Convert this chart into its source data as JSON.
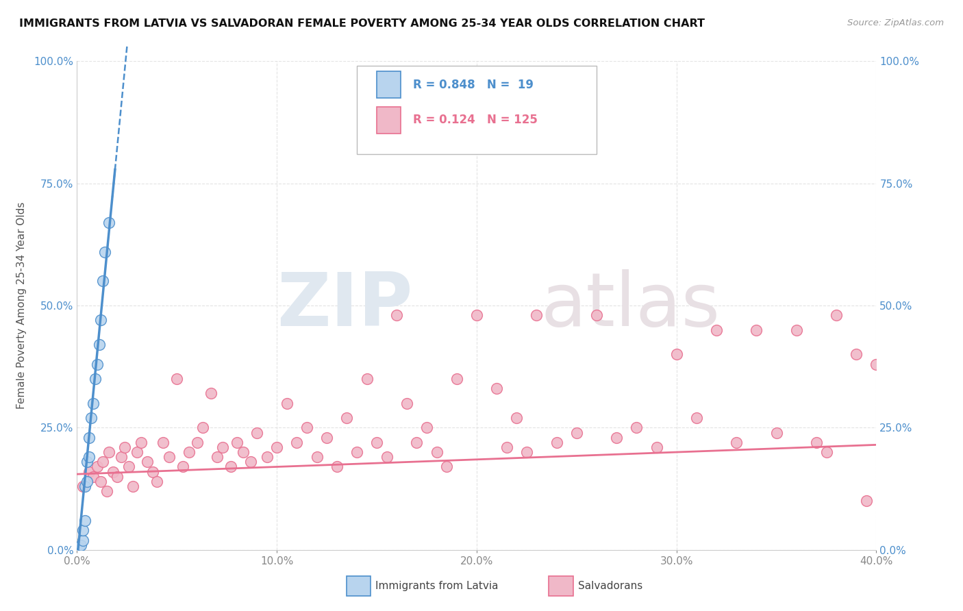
{
  "title": "IMMIGRANTS FROM LATVIA VS SALVADORAN FEMALE POVERTY AMONG 25-34 YEAR OLDS CORRELATION CHART",
  "source": "Source: ZipAtlas.com",
  "ylabel": "Female Poverty Among 25-34 Year Olds",
  "xlim": [
    0.0,
    0.4
  ],
  "ylim": [
    0.0,
    1.0
  ],
  "xticks": [
    0.0,
    0.1,
    0.2,
    0.3,
    0.4
  ],
  "xtick_labels": [
    "0.0%",
    "10.0%",
    "20.0%",
    "30.0%",
    "40.0%"
  ],
  "yticks": [
    0.0,
    0.25,
    0.5,
    0.75,
    1.0
  ],
  "ytick_labels": [
    "0.0%",
    "25.0%",
    "50.0%",
    "75.0%",
    "100.0%"
  ],
  "legend_R_blue": "0.848",
  "legend_N_blue": "19",
  "legend_R_pink": "0.124",
  "legend_N_pink": "125",
  "legend_label_blue": "Immigrants from Latvia",
  "legend_label_pink": "Salvadorans",
  "blue_color": "#4d8fcc",
  "blue_scatter_color": "#b8d4ee",
  "pink_color": "#e87090",
  "pink_scatter_color": "#f0b8c8",
  "blue_points_x": [
    0.001,
    0.002,
    0.003,
    0.003,
    0.004,
    0.004,
    0.005,
    0.005,
    0.006,
    0.006,
    0.007,
    0.008,
    0.009,
    0.01,
    0.011,
    0.012,
    0.013,
    0.014,
    0.016
  ],
  "blue_points_y": [
    0.005,
    0.01,
    0.02,
    0.04,
    0.06,
    0.13,
    0.14,
    0.18,
    0.19,
    0.23,
    0.27,
    0.3,
    0.35,
    0.38,
    0.42,
    0.47,
    0.55,
    0.61,
    0.67
  ],
  "pink_points_x": [
    0.003,
    0.006,
    0.008,
    0.01,
    0.012,
    0.013,
    0.015,
    0.016,
    0.018,
    0.02,
    0.022,
    0.024,
    0.026,
    0.028,
    0.03,
    0.032,
    0.035,
    0.038,
    0.04,
    0.043,
    0.046,
    0.05,
    0.053,
    0.056,
    0.06,
    0.063,
    0.067,
    0.07,
    0.073,
    0.077,
    0.08,
    0.083,
    0.087,
    0.09,
    0.095,
    0.1,
    0.105,
    0.11,
    0.115,
    0.12,
    0.125,
    0.13,
    0.135,
    0.14,
    0.145,
    0.15,
    0.155,
    0.16,
    0.165,
    0.17,
    0.175,
    0.18,
    0.185,
    0.19,
    0.2,
    0.21,
    0.215,
    0.22,
    0.225,
    0.23,
    0.24,
    0.25,
    0.26,
    0.27,
    0.28,
    0.29,
    0.3,
    0.31,
    0.32,
    0.33,
    0.34,
    0.35,
    0.36,
    0.37,
    0.375,
    0.38,
    0.39,
    0.395,
    0.4
  ],
  "pink_points_y": [
    0.13,
    0.16,
    0.15,
    0.17,
    0.14,
    0.18,
    0.12,
    0.2,
    0.16,
    0.15,
    0.19,
    0.21,
    0.17,
    0.13,
    0.2,
    0.22,
    0.18,
    0.16,
    0.14,
    0.22,
    0.19,
    0.35,
    0.17,
    0.2,
    0.22,
    0.25,
    0.32,
    0.19,
    0.21,
    0.17,
    0.22,
    0.2,
    0.18,
    0.24,
    0.19,
    0.21,
    0.3,
    0.22,
    0.25,
    0.19,
    0.23,
    0.17,
    0.27,
    0.2,
    0.35,
    0.22,
    0.19,
    0.48,
    0.3,
    0.22,
    0.25,
    0.2,
    0.17,
    0.35,
    0.48,
    0.33,
    0.21,
    0.27,
    0.2,
    0.48,
    0.22,
    0.24,
    0.48,
    0.23,
    0.25,
    0.21,
    0.4,
    0.27,
    0.45,
    0.22,
    0.45,
    0.24,
    0.45,
    0.22,
    0.2,
    0.48,
    0.4,
    0.1,
    0.38
  ],
  "blue_trend_slope": 42.0,
  "blue_trend_intercept": -0.02,
  "blue_trend_x_solid_start": 0.0,
  "blue_trend_x_solid_end": 0.019,
  "blue_trend_x_dash_start": 0.014,
  "blue_trend_x_dash_end": 0.025,
  "pink_trend_slope": 0.15,
  "pink_trend_intercept": 0.155,
  "watermark_zip": "ZIP",
  "watermark_atlas": "atlas",
  "background_color": "#ffffff",
  "grid_color": "#dddddd"
}
